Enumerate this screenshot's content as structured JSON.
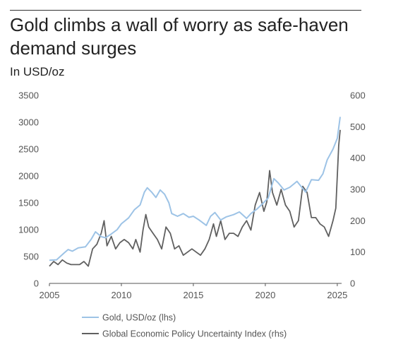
{
  "chart_data": {
    "type": "line",
    "title": "Gold climbs a wall of worry as safe-haven demand surges",
    "subtitle": "In USD/oz",
    "x_ticks": [
      "2005",
      "2010",
      "2015",
      "2020",
      "2025"
    ],
    "y_left_ticks": [
      "0",
      "500",
      "1000",
      "1500",
      "2000",
      "2500",
      "3000",
      "3500"
    ],
    "y_right_ticks": [
      "0",
      "100",
      "200",
      "300",
      "400",
      "500",
      "600"
    ],
    "xlim": [
      2005,
      2025.3
    ],
    "ylim_left": [
      0,
      3500
    ],
    "ylim_right": [
      0,
      600
    ],
    "grid": false,
    "legend_position": "bottom-left",
    "series": [
      {
        "name": "Gold, USD/oz (lhs)",
        "axis": "left",
        "color": "#9dc3e6",
        "x": [
          2005.0,
          2005.5,
          2006.0,
          2006.3,
          2006.6,
          2007.0,
          2007.5,
          2007.9,
          2008.2,
          2008.6,
          2008.9,
          2009.3,
          2009.7,
          2010.0,
          2010.5,
          2010.9,
          2011.3,
          2011.6,
          2011.8,
          2012.1,
          2012.4,
          2012.7,
          2013.0,
          2013.3,
          2013.5,
          2013.9,
          2014.3,
          2014.7,
          2015.0,
          2015.4,
          2015.9,
          2016.2,
          2016.5,
          2016.9,
          2017.3,
          2017.8,
          2018.2,
          2018.7,
          2019.0,
          2019.4,
          2019.8,
          2020.2,
          2020.6,
          2020.9,
          2021.3,
          2021.7,
          2022.2,
          2022.8,
          2023.2,
          2023.7,
          2024.0,
          2024.3,
          2024.7,
          2025.0,
          2025.2
        ],
        "values": [
          430,
          440,
          560,
          630,
          600,
          660,
          680,
          820,
          960,
          870,
          850,
          920,
          1000,
          1110,
          1220,
          1370,
          1460,
          1700,
          1780,
          1700,
          1600,
          1740,
          1660,
          1500,
          1300,
          1250,
          1300,
          1230,
          1250,
          1180,
          1080,
          1250,
          1320,
          1180,
          1240,
          1280,
          1330,
          1210,
          1300,
          1380,
          1480,
          1590,
          1950,
          1870,
          1740,
          1790,
          1900,
          1700,
          1930,
          1920,
          2040,
          2300,
          2500,
          2700,
          3100
        ]
      },
      {
        "name": "Global Economic Policy Uncertainty Index (rhs)",
        "axis": "right",
        "color": "#606060",
        "x": [
          2005.0,
          2005.3,
          2005.6,
          2005.9,
          2006.2,
          2006.5,
          2006.8,
          2007.1,
          2007.4,
          2007.7,
          2008.0,
          2008.3,
          2008.6,
          2008.8,
          2009.0,
          2009.3,
          2009.6,
          2009.9,
          2010.2,
          2010.5,
          2010.8,
          2011.0,
          2011.3,
          2011.5,
          2011.7,
          2011.9,
          2012.2,
          2012.5,
          2012.8,
          2013.1,
          2013.4,
          2013.7,
          2014.0,
          2014.3,
          2014.6,
          2014.9,
          2015.2,
          2015.5,
          2015.8,
          2016.1,
          2016.4,
          2016.6,
          2016.9,
          2017.2,
          2017.5,
          2017.8,
          2018.1,
          2018.4,
          2018.7,
          2019.0,
          2019.3,
          2019.6,
          2019.9,
          2020.1,
          2020.3,
          2020.5,
          2020.8,
          2021.1,
          2021.4,
          2021.7,
          2022.0,
          2022.3,
          2022.6,
          2022.9,
          2023.2,
          2023.5,
          2023.8,
          2024.1,
          2024.4,
          2024.7,
          2024.9,
          2025.1,
          2025.2
        ],
        "values": [
          55,
          70,
          60,
          75,
          65,
          60,
          60,
          60,
          70,
          55,
          110,
          125,
          160,
          200,
          120,
          150,
          110,
          130,
          140,
          130,
          110,
          140,
          100,
          170,
          220,
          180,
          160,
          140,
          110,
          180,
          160,
          110,
          120,
          90,
          100,
          110,
          100,
          90,
          110,
          140,
          190,
          150,
          200,
          140,
          160,
          160,
          150,
          180,
          200,
          170,
          250,
          290,
          230,
          260,
          360,
          290,
          250,
          300,
          250,
          230,
          180,
          200,
          310,
          290,
          210,
          210,
          190,
          180,
          150,
          200,
          240,
          440,
          490
        ]
      }
    ]
  }
}
